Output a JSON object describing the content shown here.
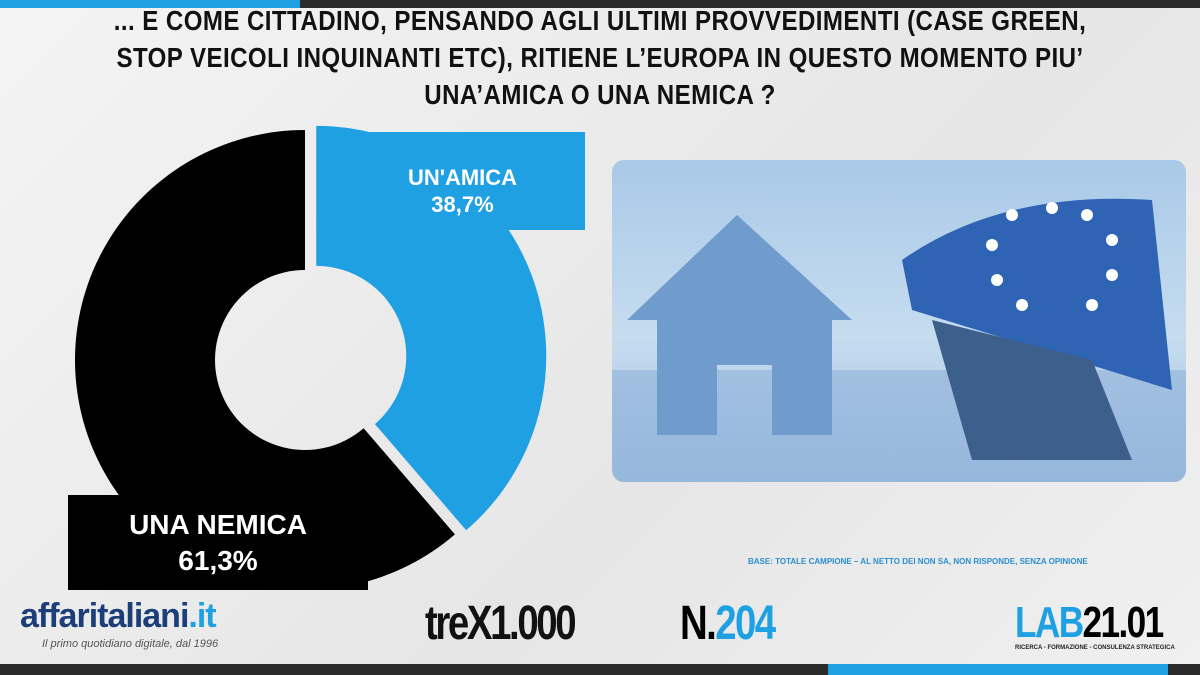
{
  "chart_data": {
    "type": "pie",
    "variant": "donut",
    "title": "... E COME CITTADINO, PENSANDO AGLI ULTIMI PROVVEDIMENTI (CASE GREEN, STOP VEICOLI INQUINANTI ETC), RITIENE L’EUROPA IN QUESTO MOMENTO PIU’ UNA’AMICA O UNA NEMICA ?",
    "slices": [
      {
        "label": "UN'AMICA",
        "value": 38.7,
        "display": "38,7%",
        "color": "#1fa0e3"
      },
      {
        "label": "UNA NEMICA",
        "value": 61.3,
        "display": "61,3%",
        "color": "#000000"
      }
    ],
    "note": "BASE: TOTALE CAMPIONE – AL NETTO DEI NON SA, NON RISPONDE, SENZA OPINIONE"
  },
  "footer": {
    "brand_main": "affaritaliani",
    "brand_tld": ".it",
    "brand_tagline": "Il primo quotidiano digitale, dal 1996",
    "series_name": "treX1.000",
    "number_prefix": "N.",
    "number": "204",
    "lab_a": "LAB",
    "lab_b": "21.01",
    "lab_tagline": "RICERCA - FORMAZIONE - CONSULENZA STRATEGICA"
  }
}
